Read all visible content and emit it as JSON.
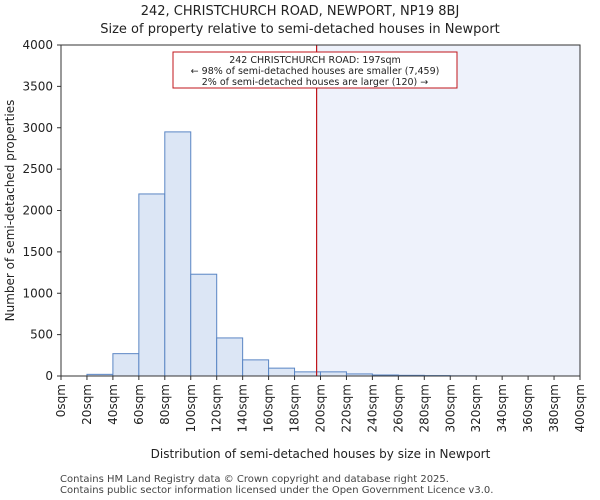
{
  "chart_data": {
    "type": "bar",
    "title": "242, CHRISTCHURCH ROAD, NEWPORT, NP19 8BJ",
    "subtitle": "Size of property relative to semi-detached houses in Newport",
    "xlabel": "Distribution of semi-detached houses by size in Newport",
    "ylabel": "Number of semi-detached properties",
    "xlim": [
      0,
      400
    ],
    "ylim": [
      0,
      4000
    ],
    "yticks": [
      0,
      500,
      1000,
      1500,
      2000,
      2500,
      3000,
      3500,
      4000
    ],
    "xtick_values": [
      0,
      20,
      40,
      60,
      80,
      100,
      120,
      140,
      160,
      180,
      200,
      220,
      240,
      260,
      280,
      300,
      320,
      340,
      360,
      380,
      400
    ],
    "xtick_labels": [
      "0sqm",
      "20sqm",
      "40sqm",
      "60sqm",
      "80sqm",
      "100sqm",
      "120sqm",
      "140sqm",
      "160sqm",
      "180sqm",
      "200sqm",
      "220sqm",
      "240sqm",
      "260sqm",
      "280sqm",
      "300sqm",
      "320sqm",
      "340sqm",
      "360sqm",
      "380sqm",
      "400sqm"
    ],
    "bin_width": 20,
    "bins": [
      0,
      20,
      40,
      60,
      80,
      100,
      120,
      140,
      160,
      180,
      200,
      220,
      240,
      260,
      280,
      300,
      320,
      340,
      360,
      380
    ],
    "values": [
      0,
      20,
      270,
      2200,
      2950,
      1230,
      460,
      195,
      95,
      50,
      50,
      25,
      12,
      8,
      5,
      2,
      0,
      0,
      0,
      0
    ],
    "bar_color": "#dce6f5",
    "bar_edge_color": "#5a86c4",
    "marker": {
      "value": 197,
      "color": "#c0151b",
      "shade_color": "#eef2fb"
    },
    "annotation": {
      "lines": [
        "242 CHRISTCHURCH ROAD: 197sqm",
        "← 98% of semi-detached houses are smaller (7,459)",
        "2% of semi-detached houses are larger (120) →"
      ],
      "border_color": "#c0151b"
    },
    "grid": false
  },
  "footer": {
    "line1": "Contains HM Land Registry data © Crown copyright and database right 2025.",
    "line2": "Contains public sector information licensed under the Open Government Licence v3.0."
  }
}
